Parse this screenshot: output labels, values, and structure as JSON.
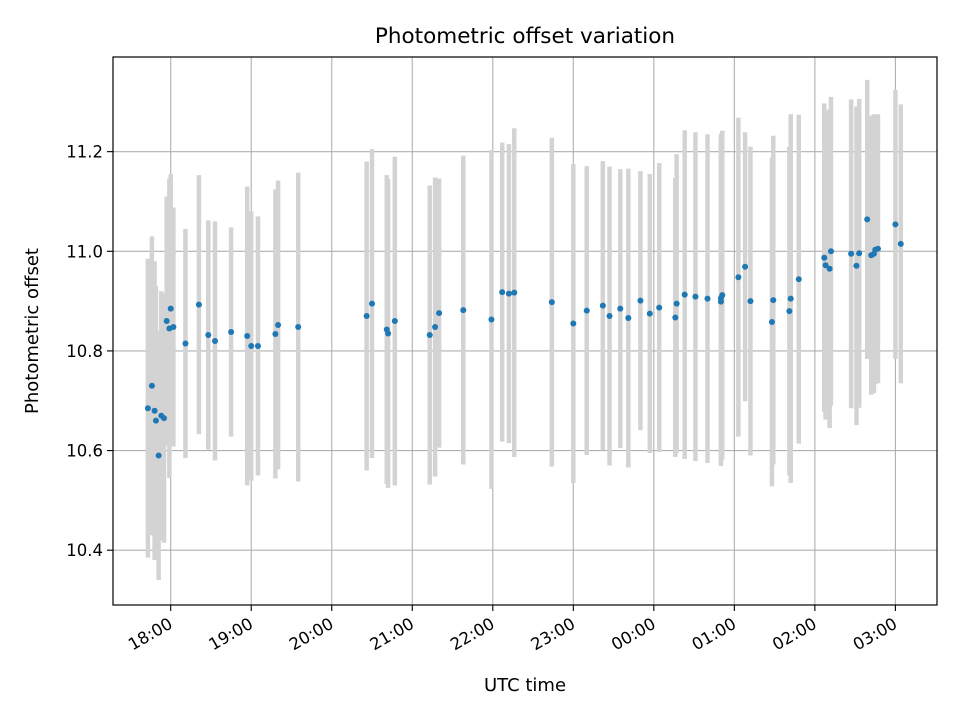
{
  "chart_data": {
    "type": "scatter",
    "title": "Photometric offset variation",
    "xlabel": "UTC time",
    "ylabel": "Photometric offset",
    "x_axis_type": "time",
    "xlim": [
      "17:17",
      "03:31"
    ],
    "ylim": [
      10.29,
      11.39
    ],
    "x_ticks": [
      "18:00",
      "19:00",
      "20:00",
      "21:00",
      "22:00",
      "23:00",
      "00:00",
      "01:00",
      "02:00",
      "03:00"
    ],
    "y_ticks": [
      10.4,
      10.6,
      10.8,
      11.0,
      11.2
    ],
    "grid": true,
    "point_color": "#1f77b4",
    "errorbar_color": "#d3d3d3",
    "series": [
      {
        "x": [
          "17:43",
          "17:46",
          "17:48",
          "17:49",
          "17:51",
          "17:53",
          "17:55",
          "17:57",
          "17:59",
          "18:00",
          "18:02",
          "18:11",
          "18:21",
          "18:28",
          "18:33",
          "18:45",
          "18:57",
          "19:00",
          "19:05",
          "19:18",
          "19:20",
          "19:35",
          "20:26",
          "20:30",
          "20:41",
          "20:42",
          "20:47",
          "21:13",
          "21:17",
          "21:20",
          "21:38",
          "21:59",
          "22:07",
          "22:12",
          "22:16",
          "22:44",
          "23:00",
          "23:10",
          "23:22",
          "23:27",
          "23:35",
          "23:41",
          "23:50",
          "23:57",
          "24:04",
          "24:16",
          "24:17",
          "24:23",
          "24:31",
          "24:40",
          "24:50",
          "24:50",
          "24:51",
          "25:03",
          "25:08",
          "25:12",
          "25:28",
          "25:29",
          "25:41",
          "25:42",
          "25:48",
          "26:07",
          "26:08",
          "26:11",
          "26:12",
          "26:27",
          "26:31",
          "26:33",
          "26:39",
          "26:42",
          "26:44",
          "26:45",
          "26:47",
          "27:00",
          "27:04"
        ],
        "y": [
          10.685,
          10.73,
          10.68,
          10.66,
          10.59,
          10.67,
          10.665,
          10.86,
          10.845,
          10.885,
          10.848,
          10.815,
          10.893,
          10.832,
          10.82,
          10.838,
          10.83,
          10.81,
          10.81,
          10.834,
          10.852,
          10.848,
          10.87,
          10.895,
          10.843,
          10.835,
          10.86,
          10.832,
          10.848,
          10.876,
          10.882,
          10.863,
          10.918,
          10.915,
          10.917,
          10.898,
          10.855,
          10.881,
          10.891,
          10.87,
          10.885,
          10.866,
          10.901,
          10.875,
          10.887,
          10.867,
          10.895,
          10.913,
          10.909,
          10.905,
          10.906,
          10.899,
          10.912,
          10.948,
          10.969,
          10.9,
          10.858,
          10.902,
          10.88,
          10.905,
          10.944,
          10.987,
          10.972,
          10.965,
          11.0,
          10.995,
          10.971,
          10.996,
          11.064,
          10.992,
          10.995,
          11.003,
          11.005,
          11.054,
          11.015
        ],
        "yerr": [
          0.3,
          0.3,
          0.3,
          0.27,
          0.25,
          0.25,
          0.25,
          0.25,
          0.3,
          0.27,
          0.24,
          0.23,
          0.26,
          0.23,
          0.24,
          0.21,
          0.3,
          0.27,
          0.26,
          0.29,
          0.29,
          0.31,
          0.31,
          0.31,
          0.31,
          0.31,
          0.33,
          0.3,
          0.3,
          0.27,
          0.31,
          0.34,
          0.3,
          0.3,
          0.33,
          0.33,
          0.32,
          0.29,
          0.29,
          0.3,
          0.28,
          0.3,
          0.26,
          0.28,
          0.29,
          0.28,
          0.3,
          0.33,
          0.33,
          0.33,
          0.33,
          0.33,
          0.33,
          0.32,
          0.27,
          0.31,
          0.33,
          0.33,
          0.33,
          0.37,
          0.33,
          0.31,
          0.31,
          0.32,
          0.31,
          0.31,
          0.32,
          0.31,
          0.28,
          0.28,
          0.28,
          0.27,
          0.27,
          0.27,
          0.28
        ]
      }
    ]
  }
}
